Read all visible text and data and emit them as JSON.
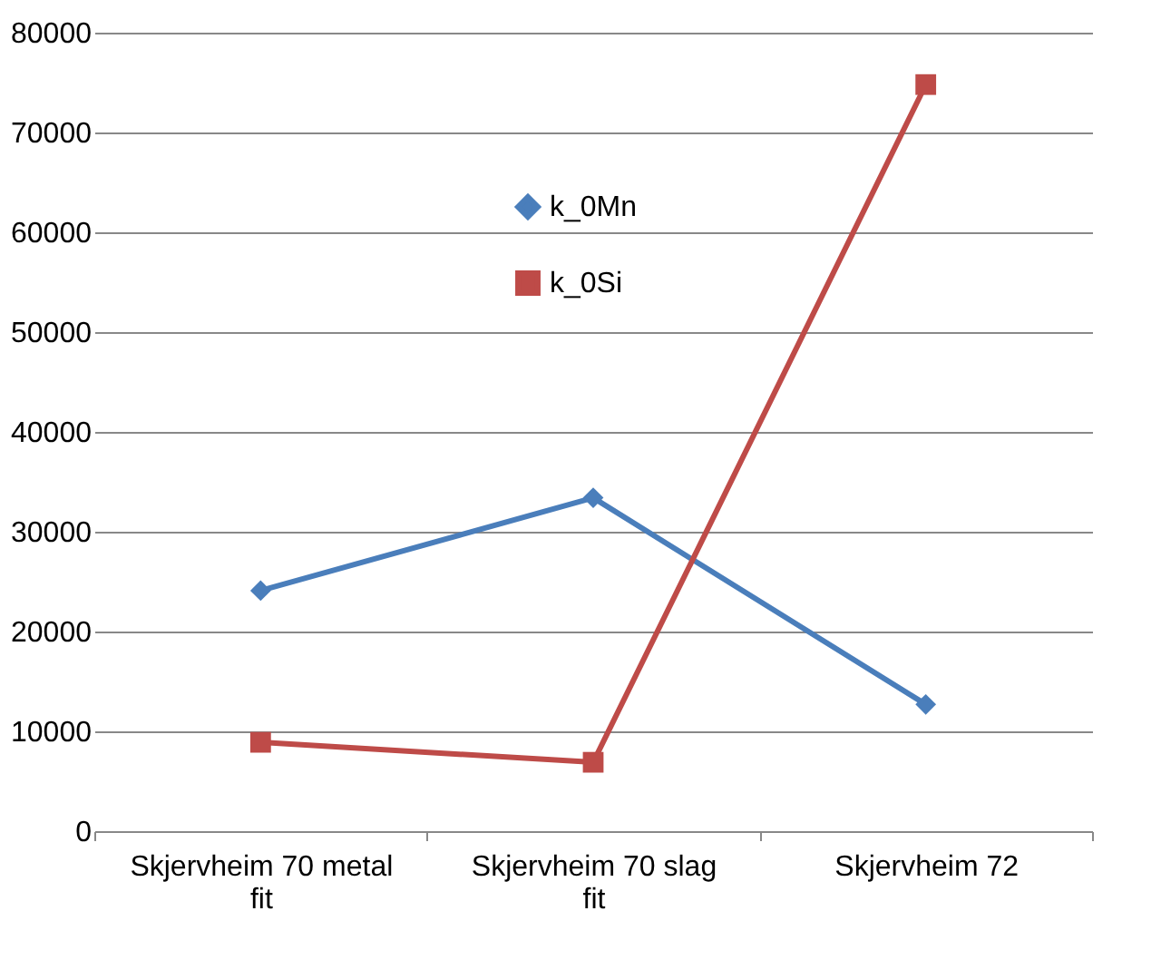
{
  "chart_data": {
    "type": "line",
    "categories": [
      "Skjervheim 70 metal fit",
      "Skjervheim 70 slag fit",
      "Skjervheim 72"
    ],
    "series": [
      {
        "name": "k_0Mn",
        "color": "#4a7ebb",
        "marker": "diamond",
        "values": [
          24100,
          33400,
          12700
        ]
      },
      {
        "name": "k_0Si",
        "color": "#be4b48",
        "marker": "square",
        "values": [
          8900,
          6900,
          74800
        ]
      }
    ],
    "ylim": [
      0,
      80000
    ],
    "yticks": [
      0,
      10000,
      20000,
      30000,
      40000,
      50000,
      60000,
      70000,
      80000
    ],
    "grid": "y",
    "legend": "top"
  }
}
